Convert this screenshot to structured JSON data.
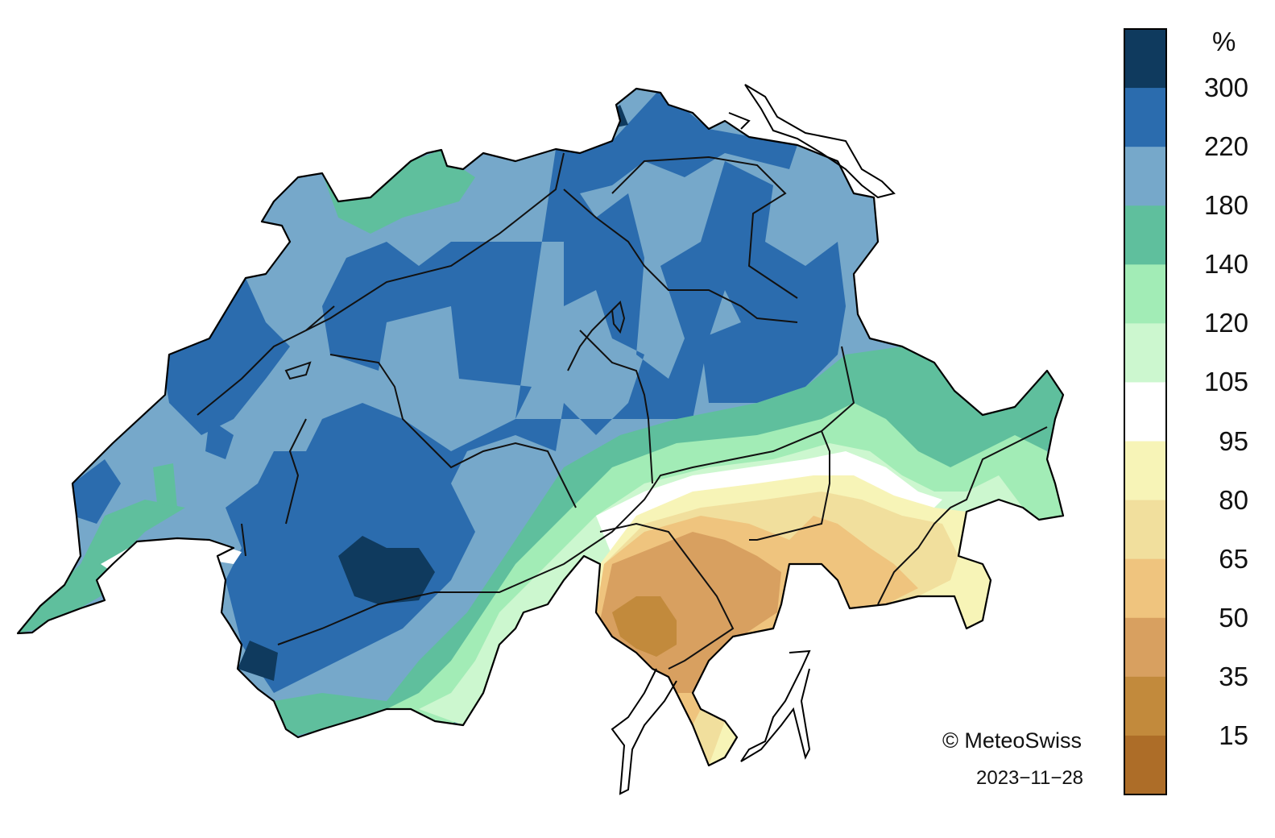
{
  "legend": {
    "unit": "%",
    "labels": [
      "300",
      "220",
      "180",
      "140",
      "120",
      "105",
      "95",
      "80",
      "65",
      "50",
      "35",
      "15"
    ],
    "colors": [
      "#0f3a5e",
      "#2b6cae",
      "#76a8ca",
      "#5fbf9d",
      "#a2ecb6",
      "#ccf7cf",
      "#ffffff",
      "#f7f4b7",
      "#f1df9d",
      "#efc47e",
      "#d8a060",
      "#c28a3c",
      "#ad6d28"
    ]
  },
  "credits": {
    "copyright": "© MeteoSwiss",
    "date": "2023−11−28"
  }
}
